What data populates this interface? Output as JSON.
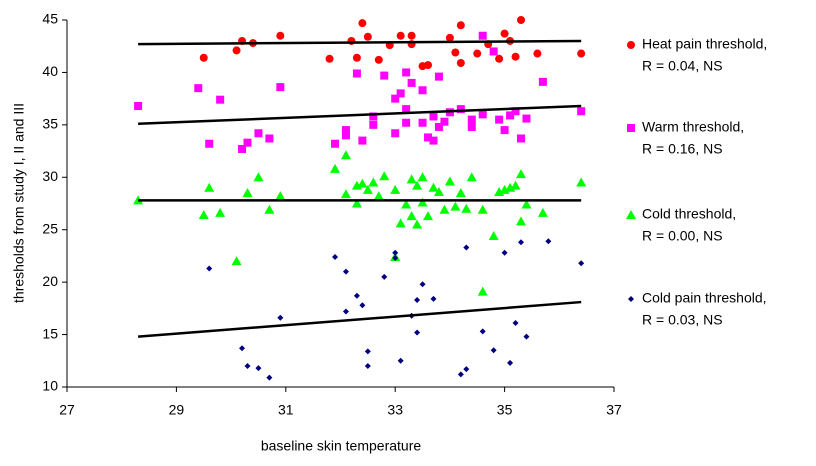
{
  "chart_data": {
    "type": "scatter",
    "x_label": "baseline skin temperature",
    "y_label": "thresholds from study I, II and III",
    "xlim": [
      27,
      37
    ],
    "xticks": [
      27,
      29,
      31,
      33,
      35,
      37
    ],
    "ylim": [
      10,
      45
    ],
    "yticks": [
      10,
      15,
      20,
      25,
      30,
      35,
      40,
      45
    ],
    "grid": false,
    "legend": "right",
    "series": [
      {
        "name": "Heat pain threshold,",
        "stat": "R = 0.04, NS",
        "color": "#ff0000",
        "marker": "circle",
        "x": [
          29.5,
          30.1,
          30.2,
          30.4,
          30.9,
          31.8,
          32.2,
          32.4,
          32.5,
          32.3,
          32.7,
          32.9,
          33.1,
          33.3,
          33.3,
          33.5,
          33.6,
          34.0,
          34.1,
          34.2,
          34.2,
          34.5,
          34.7,
          34.9,
          35.0,
          35.1,
          35.2,
          35.3,
          35.6,
          36.4
        ],
        "values": [
          41.4,
          42.1,
          43.0,
          42.8,
          43.5,
          41.3,
          43.0,
          44.7,
          43.4,
          41.4,
          41.2,
          42.6,
          43.5,
          43.5,
          42.7,
          40.6,
          40.7,
          43.3,
          41.9,
          44.5,
          40.9,
          41.8,
          42.7,
          41.3,
          43.7,
          43.0,
          41.5,
          45.0,
          41.8,
          41.8
        ],
        "trend": {
          "x": [
            28.3,
            36.4
          ],
          "values": [
            42.7,
            43.0
          ]
        }
      },
      {
        "name": "Warm threshold,",
        "stat": "R = 0.16, NS",
        "color": "#ff00ff",
        "marker": "square",
        "x": [
          28.3,
          29.4,
          29.6,
          29.8,
          30.2,
          30.3,
          30.5,
          30.7,
          30.9,
          31.9,
          32.1,
          32.1,
          32.3,
          32.4,
          32.6,
          32.6,
          32.8,
          33.0,
          33.0,
          33.1,
          33.2,
          33.2,
          33.2,
          33.3,
          33.5,
          33.5,
          33.6,
          33.7,
          33.7,
          33.8,
          33.8,
          33.9,
          34.0,
          34.2,
          34.4,
          34.4,
          34.6,
          34.6,
          34.8,
          34.9,
          35.0,
          35.1,
          35.2,
          35.3,
          35.4,
          35.7,
          36.4
        ],
        "values": [
          36.8,
          38.5,
          33.2,
          37.4,
          32.7,
          33.3,
          34.2,
          33.7,
          38.6,
          33.2,
          34.5,
          34.0,
          39.9,
          33.5,
          35.0,
          35.8,
          39.7,
          34.2,
          37.5,
          38.0,
          36.5,
          35.2,
          40.0,
          39.0,
          35.2,
          38.3,
          33.8,
          35.8,
          33.5,
          34.8,
          39.6,
          35.3,
          36.2,
          36.5,
          35.5,
          34.8,
          43.5,
          36.0,
          42.0,
          35.5,
          34.5,
          35.9,
          36.3,
          33.7,
          35.6,
          39.1,
          36.3
        ],
        "trend": {
          "x": [
            28.3,
            36.4
          ],
          "values": [
            35.1,
            36.8
          ]
        }
      },
      {
        "name": "Cold threshold,",
        "stat": "R = 0.00, NS",
        "color": "#00ff00",
        "marker": "triangle",
        "x": [
          28.3,
          29.5,
          29.6,
          29.8,
          30.1,
          30.3,
          30.5,
          30.7,
          30.9,
          31.9,
          32.1,
          32.1,
          32.3,
          32.3,
          32.4,
          32.5,
          32.6,
          32.7,
          32.8,
          33.0,
          33.0,
          33.1,
          33.2,
          33.3,
          33.3,
          33.4,
          33.4,
          33.5,
          33.5,
          33.6,
          33.7,
          33.8,
          33.9,
          34.0,
          34.1,
          34.2,
          34.3,
          34.4,
          34.6,
          34.6,
          34.8,
          34.9,
          35.0,
          35.1,
          35.2,
          35.3,
          35.3,
          35.4,
          35.7,
          36.4
        ],
        "values": [
          27.8,
          26.4,
          29.0,
          26.6,
          22.0,
          28.5,
          30.0,
          26.9,
          28.2,
          30.8,
          32.1,
          28.4,
          29.2,
          27.5,
          29.4,
          28.8,
          29.5,
          28.2,
          30.1,
          28.8,
          22.4,
          25.6,
          27.4,
          29.8,
          26.3,
          29.2,
          25.5,
          27.6,
          30.0,
          26.3,
          29.0,
          28.6,
          26.9,
          29.6,
          27.2,
          28.5,
          27.0,
          30.0,
          26.9,
          19.1,
          24.4,
          28.6,
          28.8,
          29.0,
          29.2,
          30.3,
          25.8,
          27.4,
          26.6,
          29.5
        ],
        "trend": {
          "x": [
            28.3,
            36.4
          ],
          "values": [
            27.8,
            27.8
          ]
        }
      },
      {
        "name": "Cold pain threshold,",
        "stat": "R = 0.03, NS",
        "color": "#000080",
        "marker": "diamond",
        "x": [
          29.6,
          30.2,
          30.3,
          30.5,
          30.7,
          30.9,
          31.9,
          32.1,
          32.1,
          32.3,
          32.4,
          32.5,
          32.5,
          32.8,
          33.0,
          33.0,
          33.1,
          33.3,
          33.4,
          33.4,
          33.5,
          33.7,
          34.2,
          34.3,
          34.3,
          34.6,
          34.8,
          35.0,
          35.1,
          35.2,
          35.3,
          35.4,
          35.8,
          36.4
        ],
        "values": [
          21.3,
          13.7,
          12.0,
          11.8,
          10.9,
          16.6,
          22.4,
          17.2,
          21.0,
          18.7,
          17.8,
          13.4,
          12.0,
          20.5,
          22.8,
          22.3,
          12.5,
          16.8,
          15.2,
          18.3,
          19.8,
          18.4,
          11.2,
          11.7,
          23.3,
          15.3,
          13.5,
          22.8,
          12.3,
          16.1,
          23.8,
          14.8,
          23.9,
          21.8
        ],
        "trend": {
          "x": [
            28.3,
            36.4
          ],
          "values": [
            14.8,
            18.1
          ]
        }
      }
    ]
  }
}
